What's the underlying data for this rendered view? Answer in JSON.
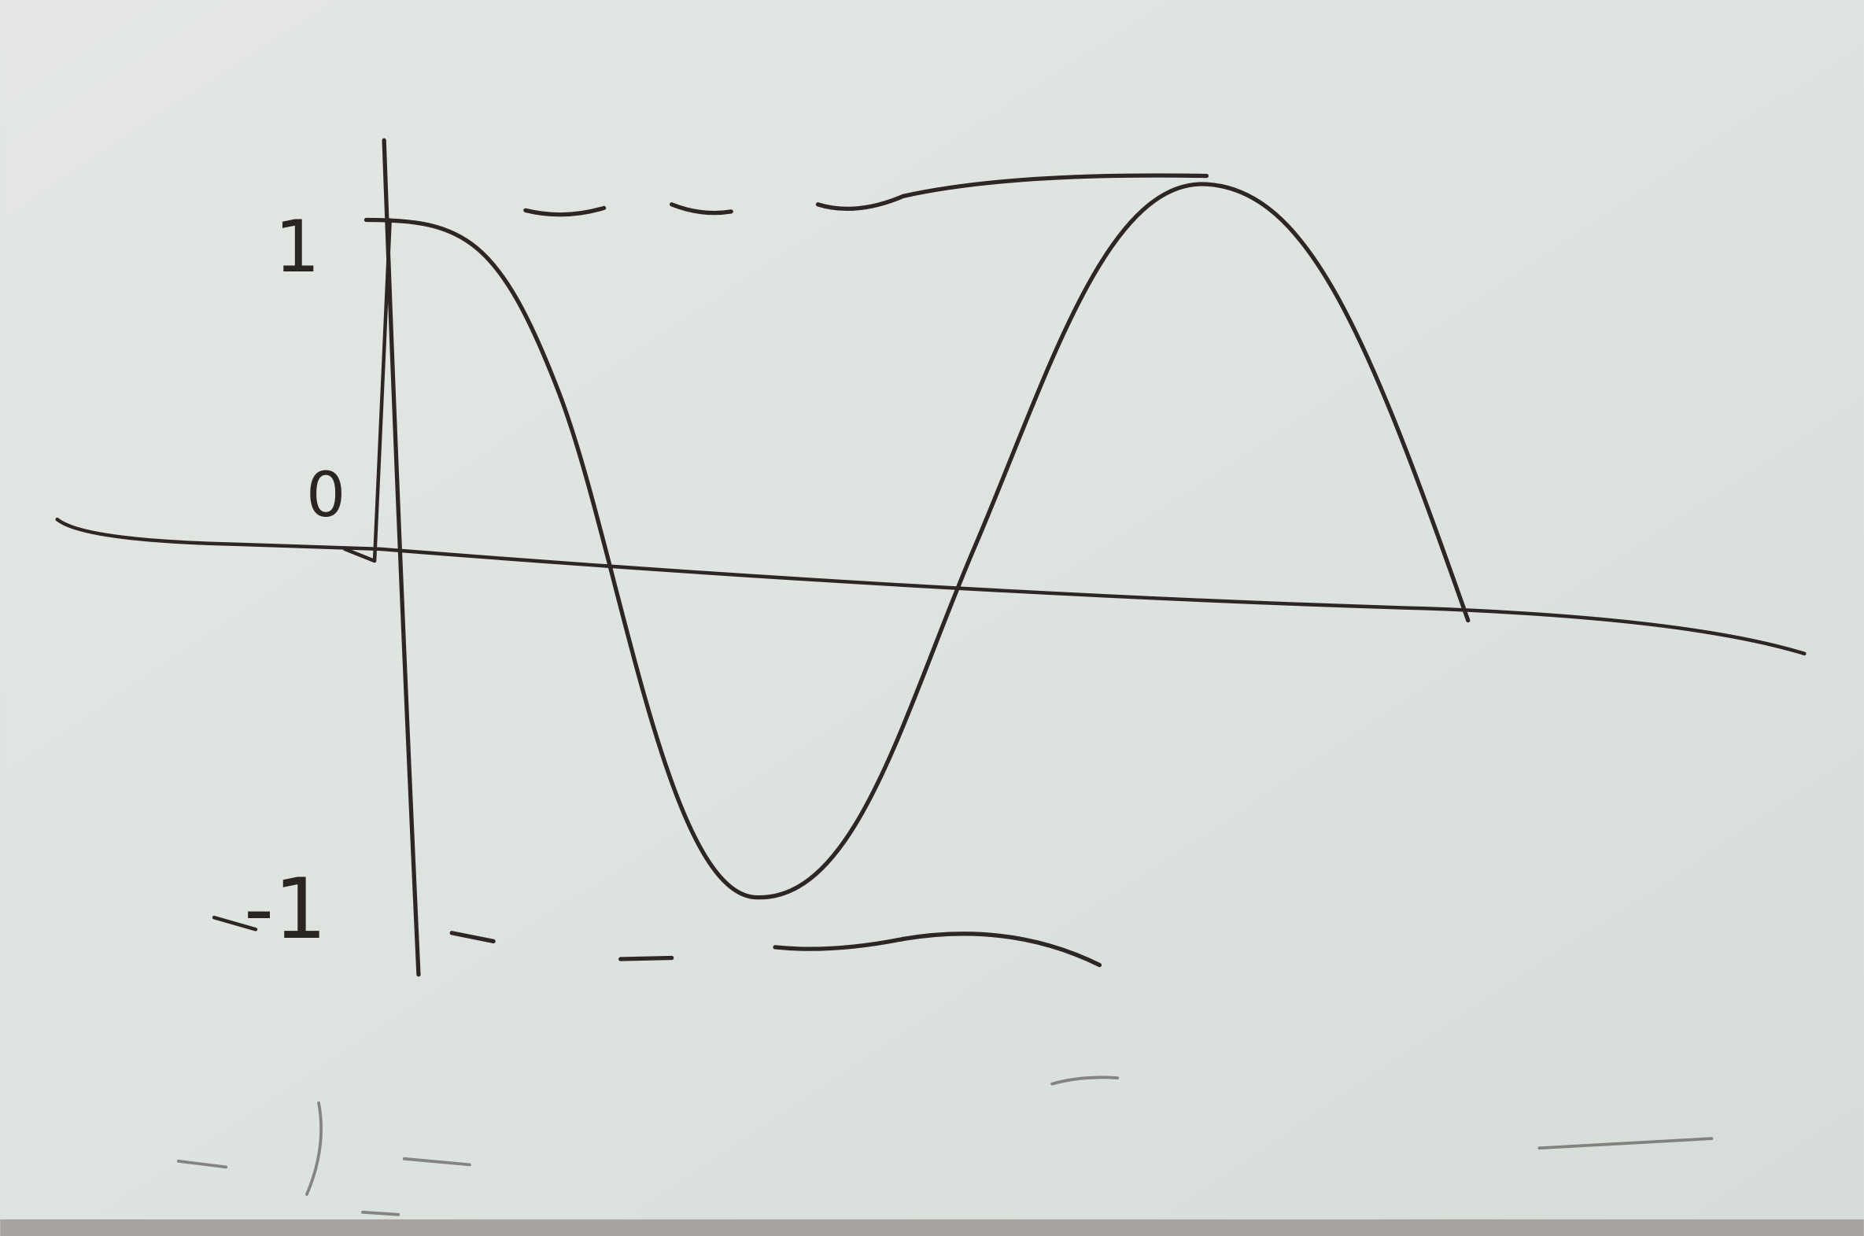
{
  "labels": {
    "top": "1",
    "origin": "0",
    "bottom": "-1"
  }
}
